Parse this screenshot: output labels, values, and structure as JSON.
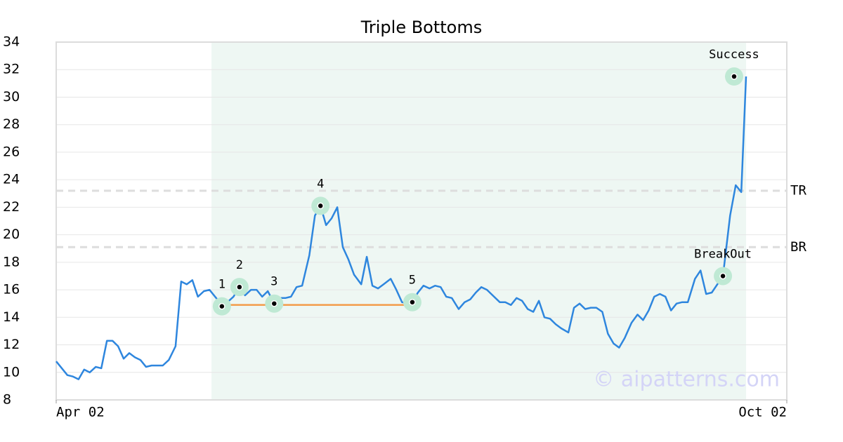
{
  "chart_data": {
    "type": "line",
    "title": "Triple Bottoms",
    "x": [
      0,
      1.4,
      2.8,
      4.2,
      5.6,
      7.0,
      8.4,
      9.9,
      11.3,
      12.7,
      14.1,
      15.5,
      16.9,
      18.3,
      19.7,
      21.1,
      22.5,
      23.9,
      25.3,
      26.7,
      28.2,
      29.9,
      31.3,
      32.7,
      34.1,
      35.5,
      37.0,
      38.4,
      39.8,
      41.5,
      42.9,
      44.4,
      45.9,
      47.3,
      48.8,
      50.2,
      51.6,
      53.0,
      54.6,
      56.0,
      57.4,
      58.8,
      60.2,
      61.6,
      63.4,
      64.8,
      66.2,
      67.6,
      69.0,
      70.4,
      71.8,
      73.2,
      74.6,
      76.4,
      77.8,
      79.2,
      80.6,
      82.0,
      83.8,
      85.2,
      86.6,
      88.0,
      89.2,
      90.6,
      92.0,
      93.5,
      94.9,
      96.3,
      97.7,
      99.1,
      100.8,
      102.3,
      103.7,
      105.1,
      106.5,
      107.9,
      109.3,
      111.1,
      112.5,
      113.9,
      115.3,
      116.7,
      118.1,
      119.5,
      120.9,
      122.3,
      123.7,
      125.1,
      126.5,
      128.3,
      129.7,
      131.1,
      132.5,
      133.9,
      135.3,
      136.8,
      138.2,
      139.6,
      141.0,
      142.4,
      144.1,
      145.6,
      147.0,
      148.4,
      149.8,
      151.2,
      152.6,
      154.0,
      155.4,
      156.8,
      158.2,
      160.0,
      161.4,
      162.8,
      164.2,
      167.0,
      168.8,
      170.2,
      171.6,
      172.8
    ],
    "series": [
      {
        "color": "#2e86de",
        "values": [
          10.8,
          10.3,
          9.8,
          9.7,
          9.5,
          10.2,
          10.0,
          10.4,
          10.3,
          12.3,
          12.3,
          11.9,
          11.0,
          11.4,
          11.1,
          10.9,
          10.4,
          10.5,
          10.5,
          10.5,
          10.9,
          11.9,
          16.6,
          16.4,
          16.7,
          15.5,
          15.9,
          16.0,
          15.5,
          14.9,
          15.1,
          15.5,
          16.2,
          15.6,
          16.0,
          16.0,
          15.5,
          15.9,
          15.0,
          15.4,
          15.4,
          15.5,
          16.2,
          16.3,
          18.5,
          21.4,
          22.1,
          20.7,
          21.2,
          22.0,
          19.1,
          18.2,
          17.1,
          16.4,
          18.4,
          16.3,
          16.1,
          16.4,
          16.8,
          16.0,
          15.1,
          15.0,
          15.1,
          15.8,
          16.3,
          16.1,
          16.3,
          16.2,
          15.5,
          15.4,
          14.6,
          15.1,
          15.3,
          15.8,
          16.2,
          16.0,
          15.6,
          15.1,
          15.1,
          14.9,
          15.4,
          15.2,
          14.6,
          14.4,
          15.2,
          14.0,
          13.9,
          13.5,
          13.2,
          12.9,
          14.7,
          15.0,
          14.6,
          14.7,
          14.7,
          14.4,
          12.8,
          12.1,
          11.8,
          12.5,
          13.6,
          14.2,
          13.8,
          14.5,
          15.5,
          15.7,
          15.5,
          14.5,
          15.0,
          15.1,
          15.1,
          16.8,
          17.4,
          15.7,
          15.8,
          17.0,
          21.4,
          23.6,
          23.1,
          31.5
        ]
      }
    ],
    "xlim": [
      0,
      183
    ],
    "xticks": [
      {
        "value": 0,
        "label": "Apr 02"
      },
      {
        "value": 183,
        "label": "Oct 02"
      }
    ],
    "ylim": [
      8,
      34
    ],
    "yticks": [
      8,
      10,
      12,
      14,
      16,
      18,
      20,
      22,
      24,
      26,
      28,
      30,
      32,
      34
    ],
    "grid": true,
    "highlight_x": [
      38.9,
      172.8
    ],
    "highlight_color": "#eef7f3",
    "support": {
      "x": [
        41.5,
        89.2
      ],
      "values": [
        14.9,
        14.9
      ],
      "color": "#f39c4a"
    },
    "hlines": [
      {
        "label": "TR",
        "value": 23.2
      },
      {
        "label": "BR",
        "value": 19.1
      }
    ],
    "annotations": [
      {
        "label": "1",
        "x": 41.5,
        "y": 14.8
      },
      {
        "label": "2",
        "x": 45.9,
        "y": 16.2
      },
      {
        "label": "3",
        "x": 54.6,
        "y": 15.0
      },
      {
        "label": "4",
        "x": 66.2,
        "y": 22.1
      },
      {
        "label": "5",
        "x": 89.2,
        "y": 15.1
      },
      {
        "label": "BreakOut",
        "x": 167.0,
        "y": 17.0
      },
      {
        "label": "Success",
        "x": 169.8,
        "y": 31.5
      }
    ],
    "watermark": "© aipatterns.com"
  }
}
